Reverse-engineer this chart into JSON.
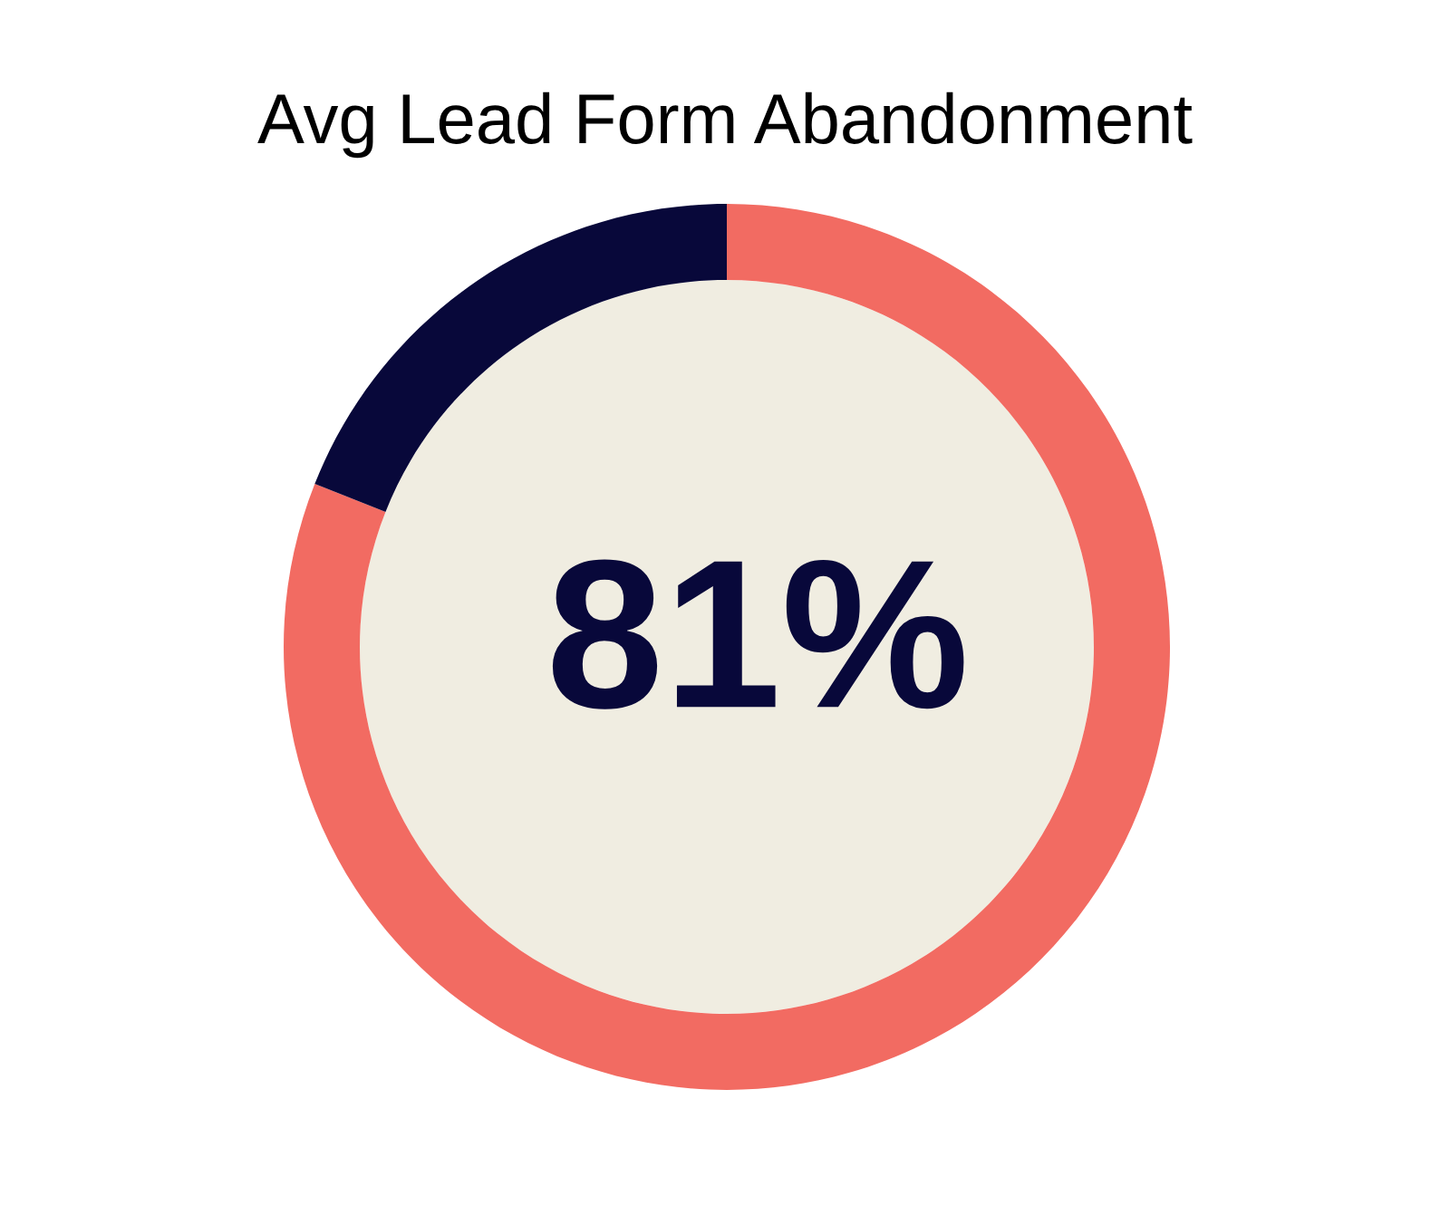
{
  "chart_data": {
    "type": "donut",
    "title": "Avg Lead Form Abandonment",
    "categories": [
      null,
      null
    ],
    "values": [
      81,
      19
    ],
    "colors": [
      "#f26b62",
      "#08083a"
    ],
    "annotations": [
      "81%"
    ],
    "legend": false
  }
}
